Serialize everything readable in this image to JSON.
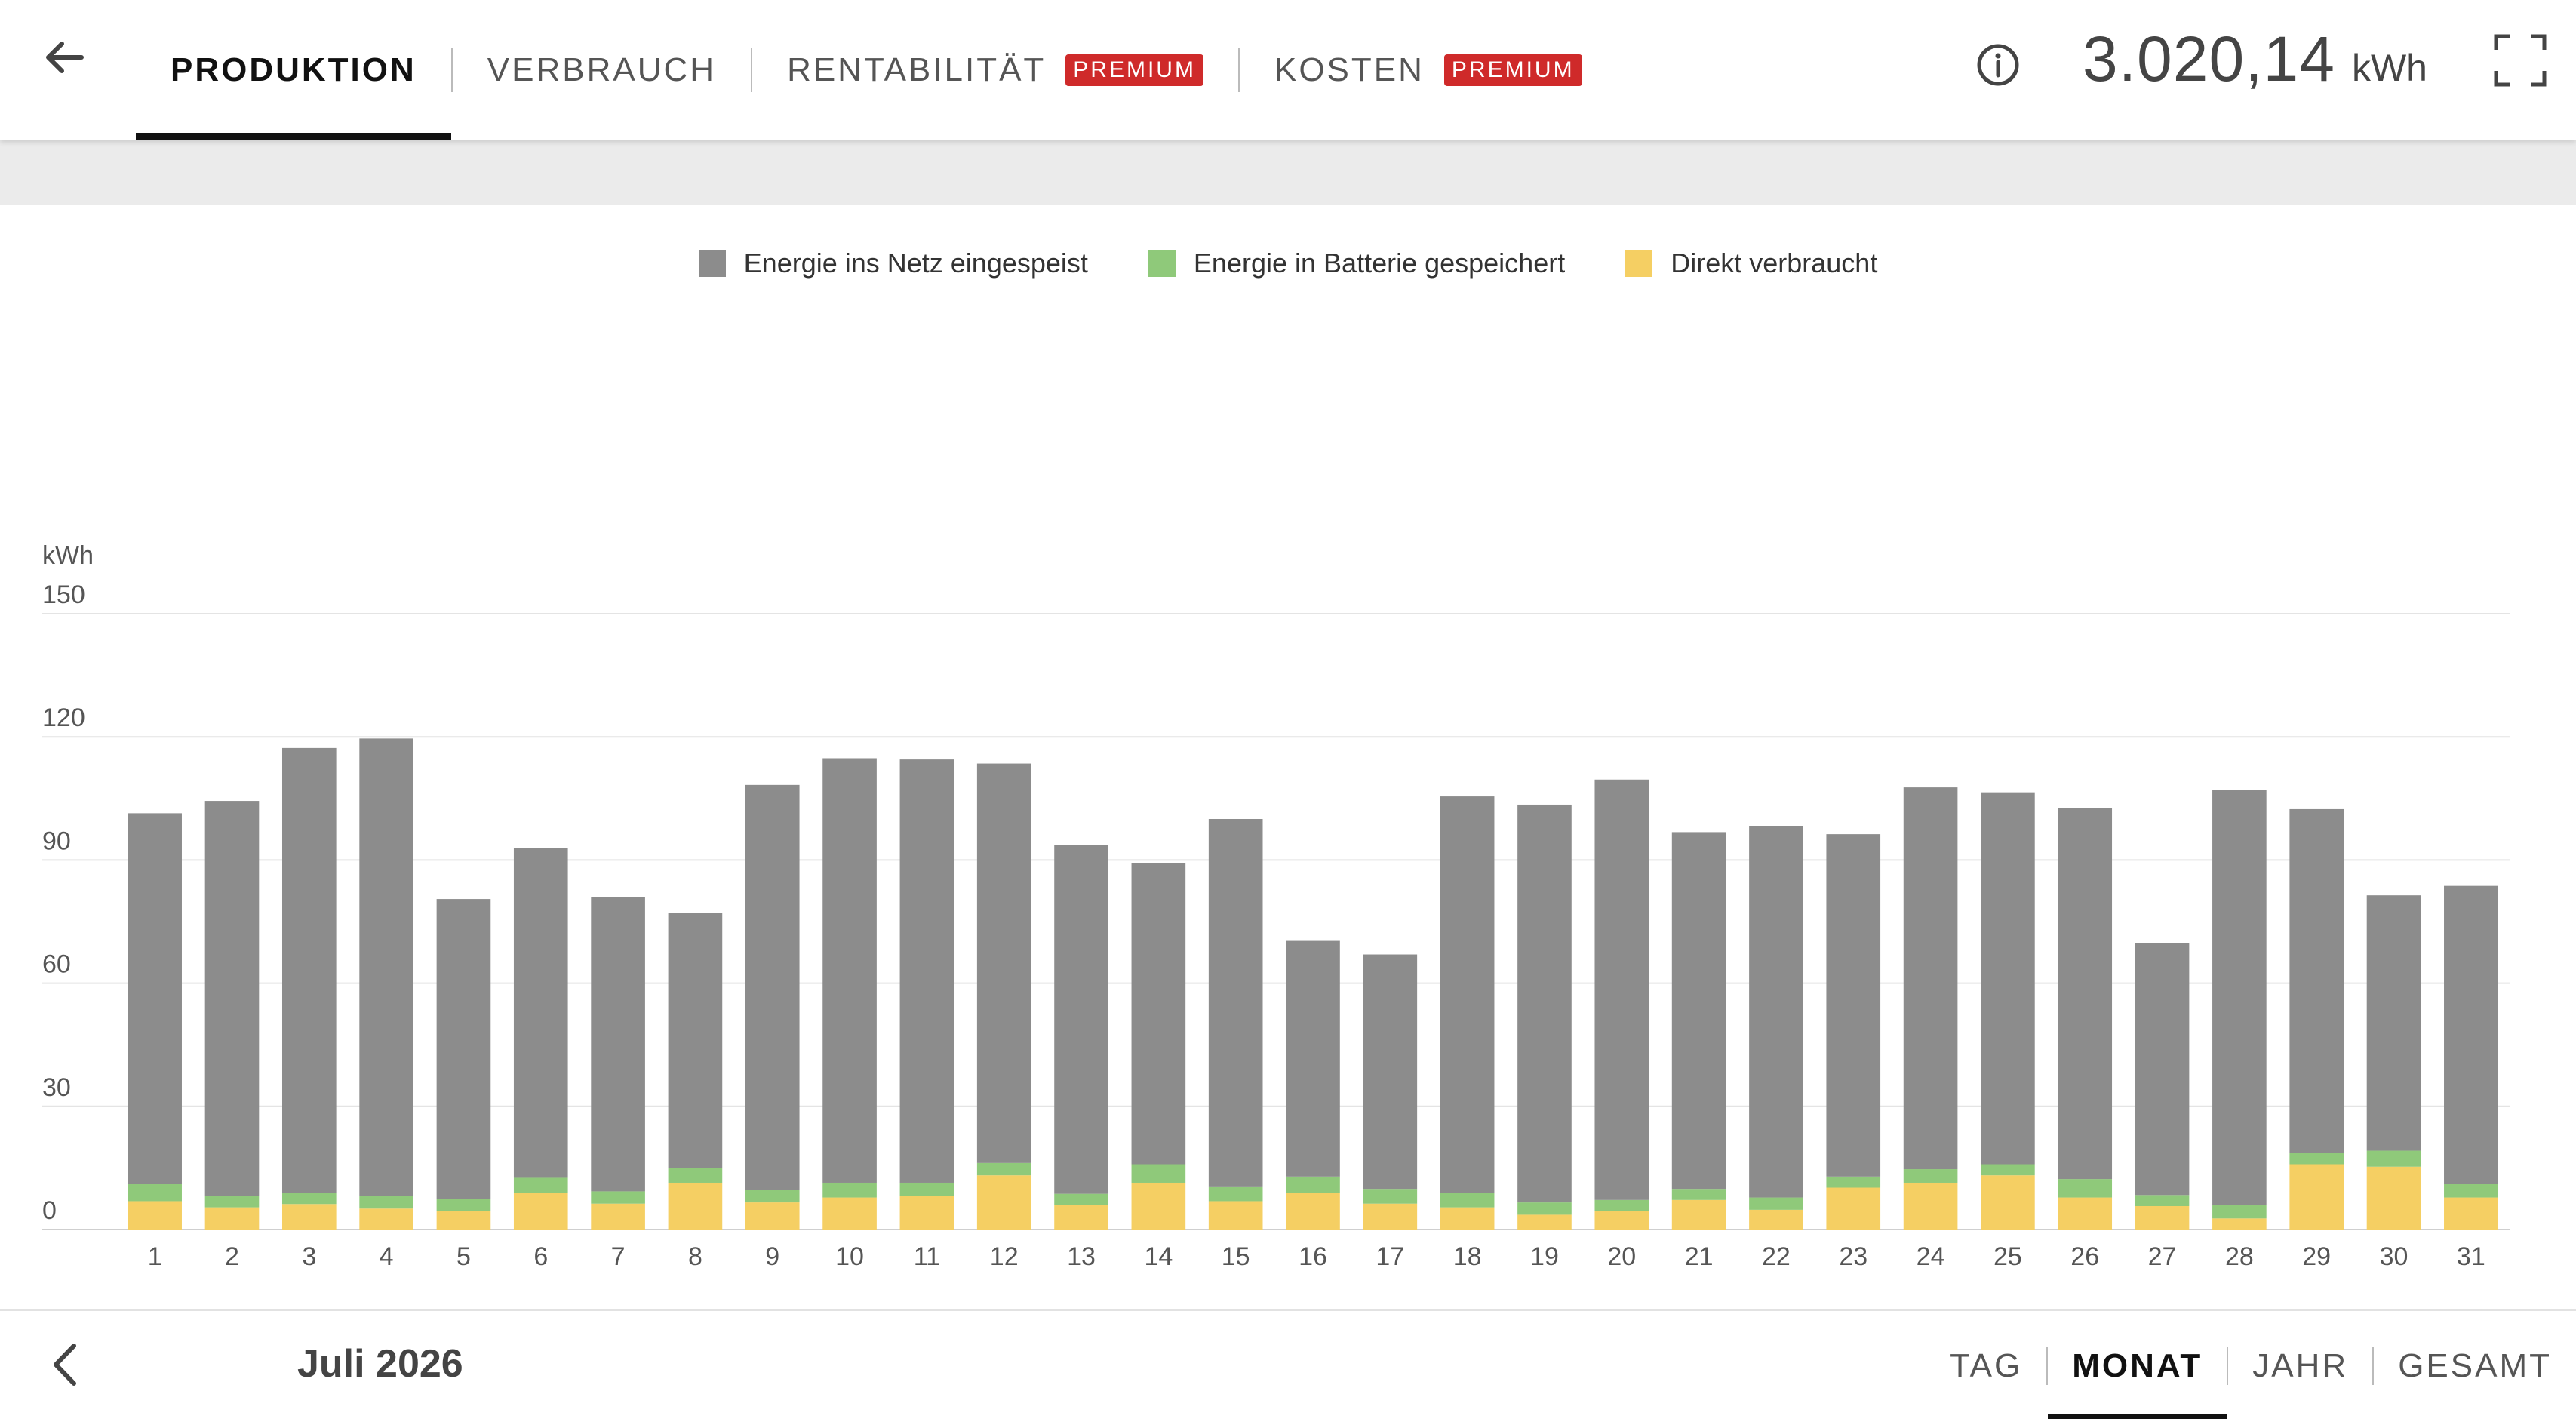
{
  "header": {
    "tabs": [
      {
        "label": "PRODUKTION",
        "active": true,
        "premium": false
      },
      {
        "label": "VERBRAUCH",
        "active": false,
        "premium": false
      },
      {
        "label": "RENTABILITÄT",
        "active": false,
        "premium": true
      },
      {
        "label": "KOSTEN",
        "active": false,
        "premium": true
      }
    ],
    "premium_label": "PREMIUM",
    "total_value": "3.020,14",
    "total_unit": "kWh",
    "icons": {
      "back": "arrow-left-icon",
      "info": "info-icon",
      "fullscreen": "fullscreen-icon"
    }
  },
  "colors": {
    "grid": "#8c8c8c",
    "battery": "#8fc97a",
    "direct": "#f5cf63",
    "premium": "#cf2a2a"
  },
  "footer": {
    "period": "Juli 2026",
    "ranges": [
      {
        "label": "TAG",
        "active": false
      },
      {
        "label": "MONAT",
        "active": true
      },
      {
        "label": "JAHR",
        "active": false
      },
      {
        "label": "GESAMT",
        "active": false
      }
    ]
  },
  "chart_data": {
    "type": "bar",
    "stacked": true,
    "ylabel": "kWh",
    "ylim": [
      0,
      150
    ],
    "yticks": [
      0,
      30,
      60,
      90,
      120,
      150
    ],
    "legend_position": "top-center",
    "categories": [
      "1",
      "2",
      "3",
      "4",
      "5",
      "6",
      "7",
      "8",
      "9",
      "10",
      "11",
      "12",
      "13",
      "14",
      "15",
      "16",
      "17",
      "18",
      "19",
      "20",
      "21",
      "22",
      "23",
      "24",
      "25",
      "26",
      "27",
      "28",
      "29",
      "30",
      "31"
    ],
    "series": [
      {
        "name": "Direkt verbraucht",
        "color": "#f5cf63",
        "values": [
          6.9,
          5.4,
          6.2,
          5.1,
          4.5,
          9.0,
          6.3,
          11.4,
          6.6,
          7.8,
          8.1,
          13.2,
          6.0,
          11.4,
          6.9,
          9.0,
          6.3,
          5.4,
          3.6,
          4.5,
          7.2,
          4.8,
          10.2,
          11.4,
          13.2,
          7.8,
          5.7,
          2.7,
          15.9,
          15.3,
          7.8
        ]
      },
      {
        "name": "Energie in Batterie gespeichert",
        "color": "#8fc97a",
        "values": [
          4.2,
          2.7,
          2.7,
          3.0,
          3.0,
          3.6,
          3.0,
          3.6,
          3.0,
          3.6,
          3.3,
          3.0,
          2.7,
          4.5,
          3.6,
          3.9,
          3.6,
          3.6,
          3.0,
          2.7,
          2.7,
          3.0,
          2.7,
          3.3,
          2.7,
          4.5,
          2.7,
          3.3,
          2.7,
          3.9,
          3.3
        ]
      },
      {
        "name": "Energie ins Netz eingespeist",
        "color": "#8c8c8c",
        "values": [
          90.3,
          96.3,
          108.4,
          111.5,
          73.0,
          80.3,
          71.7,
          62.1,
          98.7,
          103.4,
          103.1,
          97.3,
          84.9,
          73.3,
          89.5,
          57.4,
          57.1,
          96.5,
          96.9,
          102.4,
          86.9,
          90.4,
          83.4,
          93.0,
          90.6,
          90.3,
          61.3,
          101.1,
          83.8,
          62.2,
          72.6
        ]
      }
    ]
  }
}
